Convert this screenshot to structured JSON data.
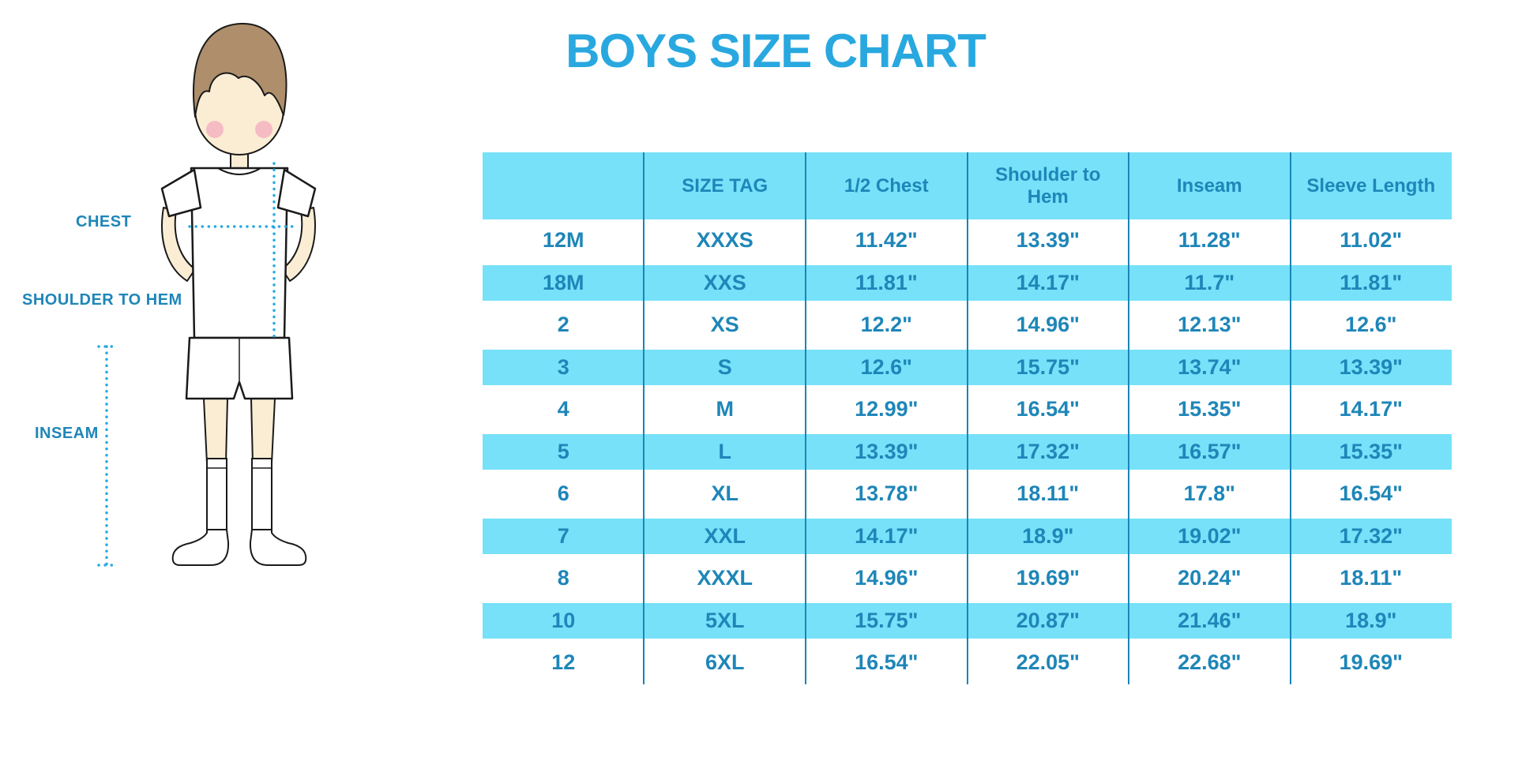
{
  "title": {
    "text": "BOYS SIZE CHART"
  },
  "colors": {
    "title_blue": "#29A8E0",
    "table_text_blue": "#1E86B8",
    "row_stripe_cyan": "#76E1F9",
    "divider_blue": "#1886B8",
    "measure_line_cyan": "#2AA9E0",
    "skin": "#FAEDD4",
    "hair_brown": "#AE8E6B",
    "blush_pink": "#F4AFBE",
    "outline": "#1a1a1a"
  },
  "diagram": {
    "labels": {
      "chest": "CHEST",
      "shoulder_to_hem": "SHOULDER TO HEM",
      "inseam": "INSEAM"
    }
  },
  "chart_data": {
    "type": "table",
    "title": "BOYS SIZE CHART",
    "columns": [
      "",
      "SIZE TAG",
      "1/2 Chest",
      "Shoulder to Hem",
      "Inseam",
      "Sleeve Length"
    ],
    "rows": [
      [
        "12M",
        "XXXS",
        "11.42\"",
        "13.39\"",
        "11.28\"",
        "11.02\""
      ],
      [
        "18M",
        "XXS",
        "11.81\"",
        "14.17\"",
        "11.7\"",
        "11.81\""
      ],
      [
        "2",
        "XS",
        "12.2\"",
        "14.96\"",
        "12.13\"",
        "12.6\""
      ],
      [
        "3",
        "S",
        "12.6\"",
        "15.75\"",
        "13.74\"",
        "13.39\""
      ],
      [
        "4",
        "M",
        "12.99\"",
        "16.54\"",
        "15.35\"",
        "14.17\""
      ],
      [
        "5",
        "L",
        "13.39\"",
        "17.32\"",
        "16.57\"",
        "15.35\""
      ],
      [
        "6",
        "XL",
        "13.78\"",
        "18.11\"",
        "17.8\"",
        "16.54\""
      ],
      [
        "7",
        "XXL",
        "14.17\"",
        "18.9\"",
        "19.02\"",
        "17.32\""
      ],
      [
        "8",
        "XXXL",
        "14.96\"",
        "19.69\"",
        "20.24\"",
        "18.11\""
      ],
      [
        "10",
        "5XL",
        "15.75\"",
        "20.87\"",
        "21.46\"",
        "18.9\""
      ],
      [
        "12",
        "6XL",
        "16.54\"",
        "22.05\"",
        "22.68\"",
        "19.69\""
      ]
    ],
    "layout": {
      "header_background": "#76E1F9",
      "striped_data_rows": [
        1,
        3,
        5,
        7,
        9
      ],
      "grid": "vertical column dividers only"
    }
  }
}
